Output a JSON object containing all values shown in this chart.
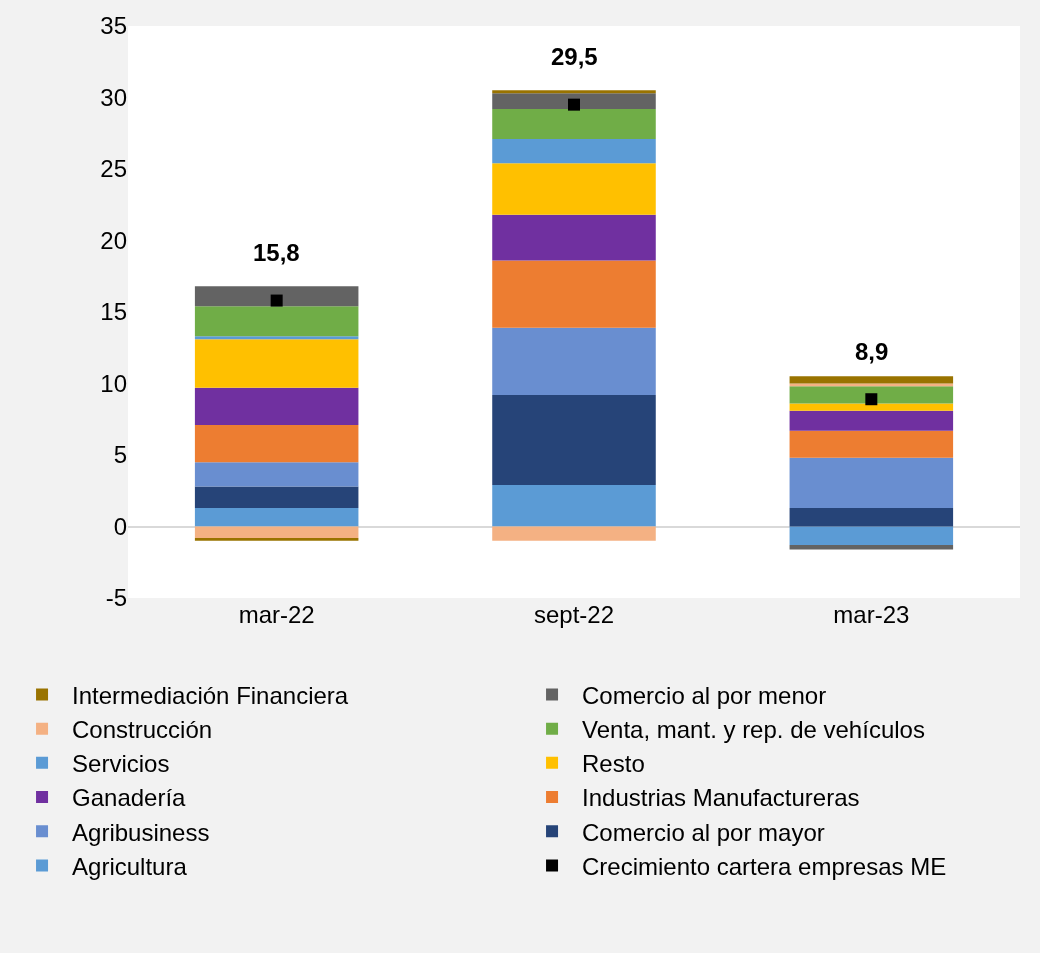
{
  "chart_data": {
    "type": "bar",
    "stacked": true,
    "categories": [
      "mar-22",
      "sept-22",
      "mar-23"
    ],
    "series": [
      {
        "name": "Agricultura",
        "color": "#5b9bd5",
        "values": [
          1.3,
          2.9,
          -1.3
        ]
      },
      {
        "name": "Comercio al por mayor",
        "color": "#264478",
        "values": [
          1.5,
          6.3,
          1.3
        ]
      },
      {
        "name": "Agribusiness",
        "color": "#698ed0",
        "values": [
          1.7,
          4.7,
          3.5
        ]
      },
      {
        "name": "Industrias Manufactureras",
        "color": "#ed7d31",
        "values": [
          2.6,
          4.7,
          1.9
        ]
      },
      {
        "name": "Ganadería",
        "color": "#7030a0",
        "values": [
          2.6,
          3.2,
          1.4
        ]
      },
      {
        "name": "Resto",
        "color": "#ffc000",
        "values": [
          3.4,
          3.6,
          0.5
        ]
      },
      {
        "name": "Servicios",
        "color": "#5b9bd5",
        "values": [
          0.2,
          1.7,
          0
        ]
      },
      {
        "name": "Venta, mant. y rep. de vehículos",
        "color": "#70ad47",
        "values": [
          2.1,
          2.1,
          1.2
        ]
      },
      {
        "name": "Construcción",
        "color": "#f4b183",
        "values": [
          -0.8,
          -1.0,
          0.2
        ]
      },
      {
        "name": "Comercio al por menor",
        "color": "#636363",
        "values": [
          1.4,
          1.1,
          -0.3
        ]
      },
      {
        "name": "Intermediación Financiera",
        "color": "#997300",
        "values": [
          -0.2,
          0.2,
          0.5
        ]
      },
      {
        "name": "Crecimiento cartera empresas ME",
        "type": "scatter",
        "color": "#000000",
        "marker": "square",
        "values": [
          15.8,
          29.5,
          8.9
        ],
        "value_labels": [
          "15,8",
          "29,5",
          "8,9"
        ]
      }
    ],
    "ylim": [
      -5,
      35
    ],
    "yticks": [
      -5,
      0,
      5,
      10,
      15,
      20,
      25,
      30,
      35
    ],
    "legend": "bottom"
  }
}
